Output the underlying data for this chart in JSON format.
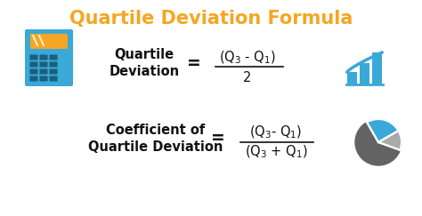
{
  "title": "Quartile Deviation Formula",
  "title_color": "#F5A623",
  "title_fontsize": 15,
  "bg_color": "#FFFFFF",
  "text_color": "#111111",
  "formula_fontsize": 10.5,
  "bar_color": "#3AA8D8",
  "pie_gray": "#636363",
  "pie_blue": "#3AA8D8",
  "calc_blue": "#3AA8D8",
  "calc_orange": "#F5A623",
  "calc_dark": "#1A5F7A",
  "formula1_label": "Quartile\nDeviation",
  "formula1_num": "(Q$_3$ - Q$_1$)",
  "formula1_den": "2",
  "formula2_label": "Coefficient of\nQuartile Deviation",
  "formula2_num": "(Q$_3$- Q$_1$)",
  "formula2_den": "(Q$_3$ + Q$_1$)"
}
